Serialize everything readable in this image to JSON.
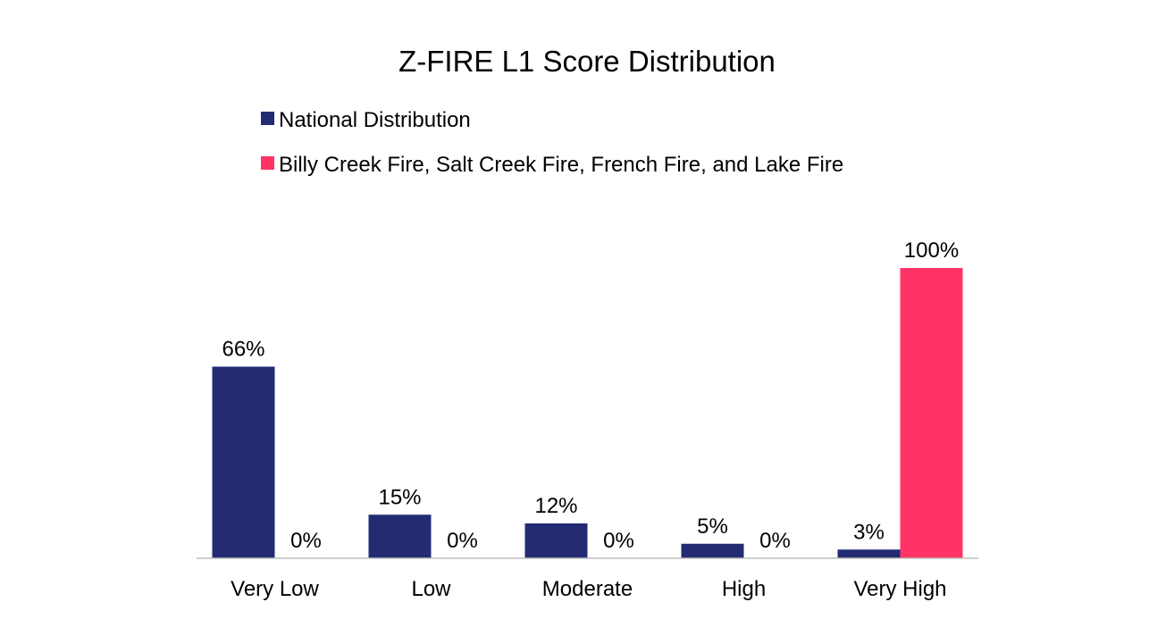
{
  "chart_data": {
    "type": "bar",
    "title": "Z-FIRE L1 Score Distribution",
    "xlabel": "",
    "ylabel": "",
    "categories": [
      "Very Low",
      "Low",
      "Moderate",
      "High",
      "Very High"
    ],
    "series": [
      {
        "name": "National Distribution",
        "color": "#232C73",
        "values": [
          66,
          15,
          12,
          5,
          3
        ],
        "labels": [
          "66%",
          "15%",
          "12%",
          "5%",
          "3%"
        ]
      },
      {
        "name": "Billy Creek Fire, Salt Creek Fire, French Fire, and Lake Fire",
        "color": "#FF3366",
        "values": [
          0,
          0,
          0,
          0,
          100
        ],
        "labels": [
          "0%",
          "0%",
          "0%",
          "0%",
          "100%"
        ]
      }
    ],
    "ylim": [
      0,
      100
    ],
    "grid": false,
    "legend": "top-left",
    "axis_color": "#BFBFBF"
  }
}
